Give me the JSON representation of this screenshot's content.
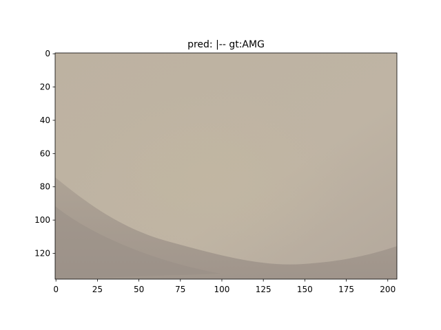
{
  "chart_data": {
    "type": "image",
    "title": "pred: |-- gt:AMG",
    "xlim": [
      -0.5,
      205.5
    ],
    "ylim": [
      135.5,
      -0.5
    ],
    "xticks": [
      0,
      25,
      50,
      75,
      100,
      125,
      150,
      175,
      200
    ],
    "yticks": [
      0,
      20,
      40,
      60,
      80,
      100,
      120
    ]
  }
}
